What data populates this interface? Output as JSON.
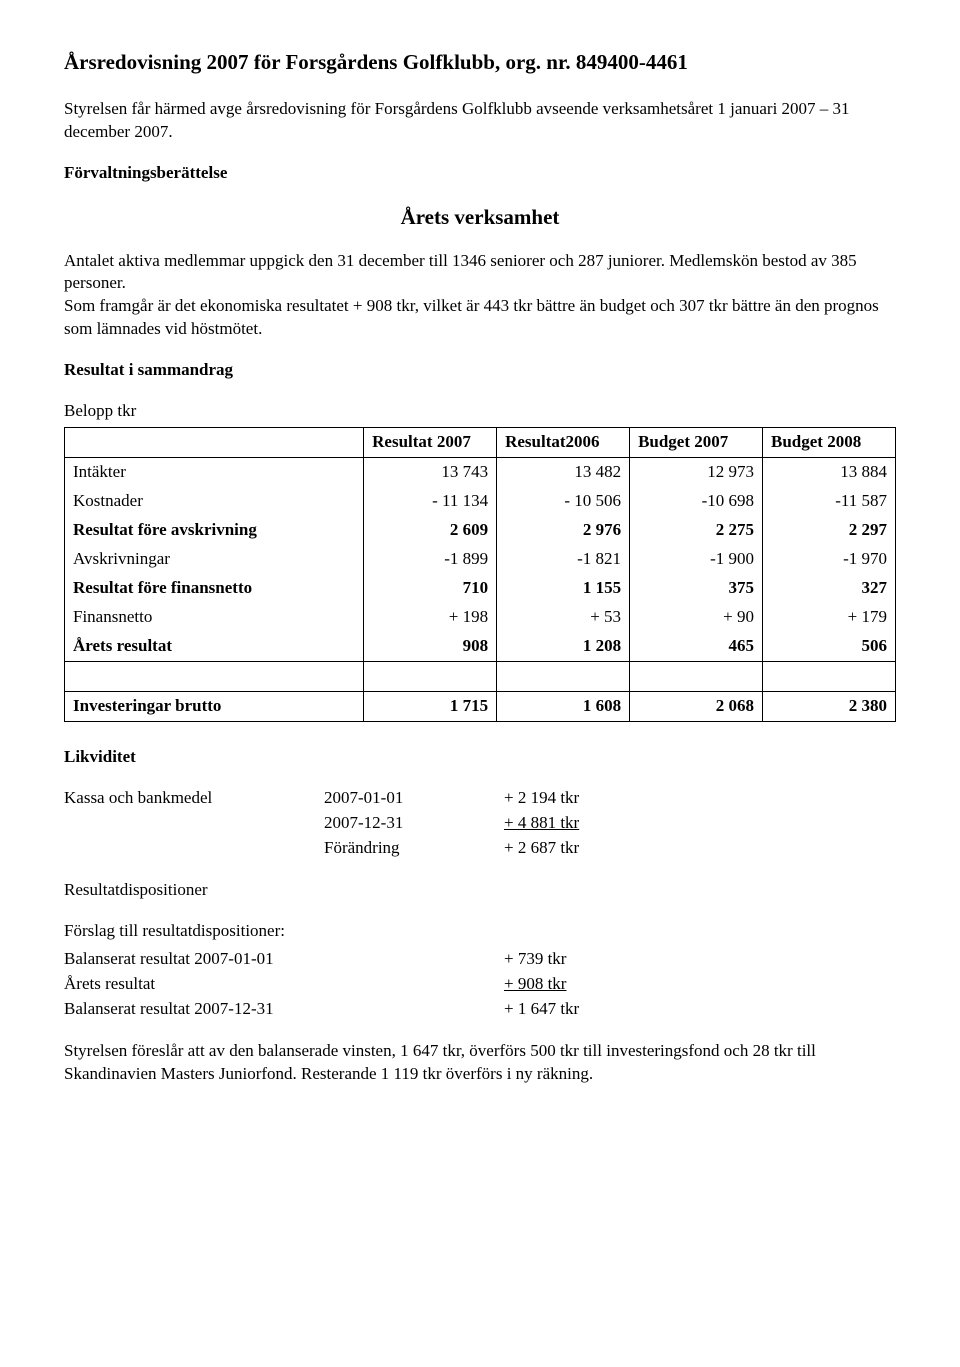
{
  "title": "Årsredovisning 2007 för Forsgårdens Golfklubb, org. nr. 849400-4461",
  "intro": "Styrelsen får härmed avge årsredovisning för Forsgårdens Golfklubb avseende verksamhetsåret 1 januari 2007 – 31 december 2007.",
  "forvaltnings": "Förvaltningsberättelse",
  "arets_verksamhet": "Årets verksamhet",
  "body1": "Antalet aktiva medlemmar uppgick den 31 december till 1346 seniorer och 287 juniorer. Medlemskön bestod av 385 personer.",
  "body2": "Som framgår är det ekonomiska resultatet  + 908 tkr, vilket är 443 tkr bättre än budget och 307 tkr bättre än den prognos som lämnades vid höstmötet.",
  "resultat_heading": "Resultat i sammandrag",
  "belopp": "Belopp tkr",
  "table": {
    "col_headers": [
      "",
      "Resultat 2007",
      "Resultat2006",
      "Budget 2007",
      "Budget 2008"
    ],
    "rows": [
      {
        "label": "Intäkter",
        "bold": false,
        "v": [
          "13 743",
          "13 482",
          "12 973",
          "13 884"
        ]
      },
      {
        "label": "Kostnader",
        "bold": false,
        "v": [
          "- 11 134",
          "- 10 506",
          "-10 698",
          "-11 587"
        ]
      },
      {
        "label": "Resultat före avskrivning",
        "bold": true,
        "v": [
          "2 609",
          "2 976",
          "2 275",
          "2 297"
        ]
      },
      {
        "label": "Avskrivningar",
        "bold": false,
        "v": [
          "-1 899",
          "-1 821",
          "-1 900",
          "-1 970"
        ]
      },
      {
        "label": "Resultat före finansnetto",
        "bold": true,
        "v": [
          "710",
          "1 155",
          "375",
          "327"
        ]
      },
      {
        "label": "Finansnetto",
        "bold": false,
        "v": [
          "+ 198",
          "+ 53",
          "+ 90",
          "+ 179"
        ]
      },
      {
        "label": "Årets resultat",
        "bold": true,
        "v": [
          "908",
          "1 208",
          "465",
          "506"
        ]
      }
    ],
    "spacer": true,
    "inv_row": {
      "label": "Investeringar brutto",
      "bold": true,
      "v": [
        "1 715",
        "1 608",
        "2 068",
        "2 380"
      ]
    }
  },
  "likviditet": {
    "heading": "Likviditet",
    "label": "Kassa och bankmedel",
    "rows": [
      {
        "date": "2007-01-01",
        "val": "+ 2 194 tkr",
        "underline": false
      },
      {
        "date": "2007-12-31",
        "val": "+ 4 881 tkr",
        "underline": true
      },
      {
        "date": "Förändring",
        "val": "+ 2 687 tkr",
        "underline": false
      }
    ]
  },
  "resultatdispositioner": "Resultatdispositioner",
  "forslag": {
    "heading": "Förslag till resultatdispositioner:",
    "rows": [
      {
        "label": "Balanserat resultat 2007-01-01",
        "val": "+    739 tkr",
        "underline": false
      },
      {
        "label": "Årets resultat",
        "val": "+    908 tkr",
        "underline": true
      },
      {
        "label": "Balanserat resultat 2007-12-31",
        "val": "+ 1 647 tkr",
        "underline": false
      }
    ]
  },
  "closing": "Styrelsen föreslår att av den balanserade vinsten, 1 647 tkr, överförs 500 tkr till investeringsfond och 28 tkr till Skandinavien Masters Juniorfond. Resterande 1 119 tkr överförs i ny räkning."
}
